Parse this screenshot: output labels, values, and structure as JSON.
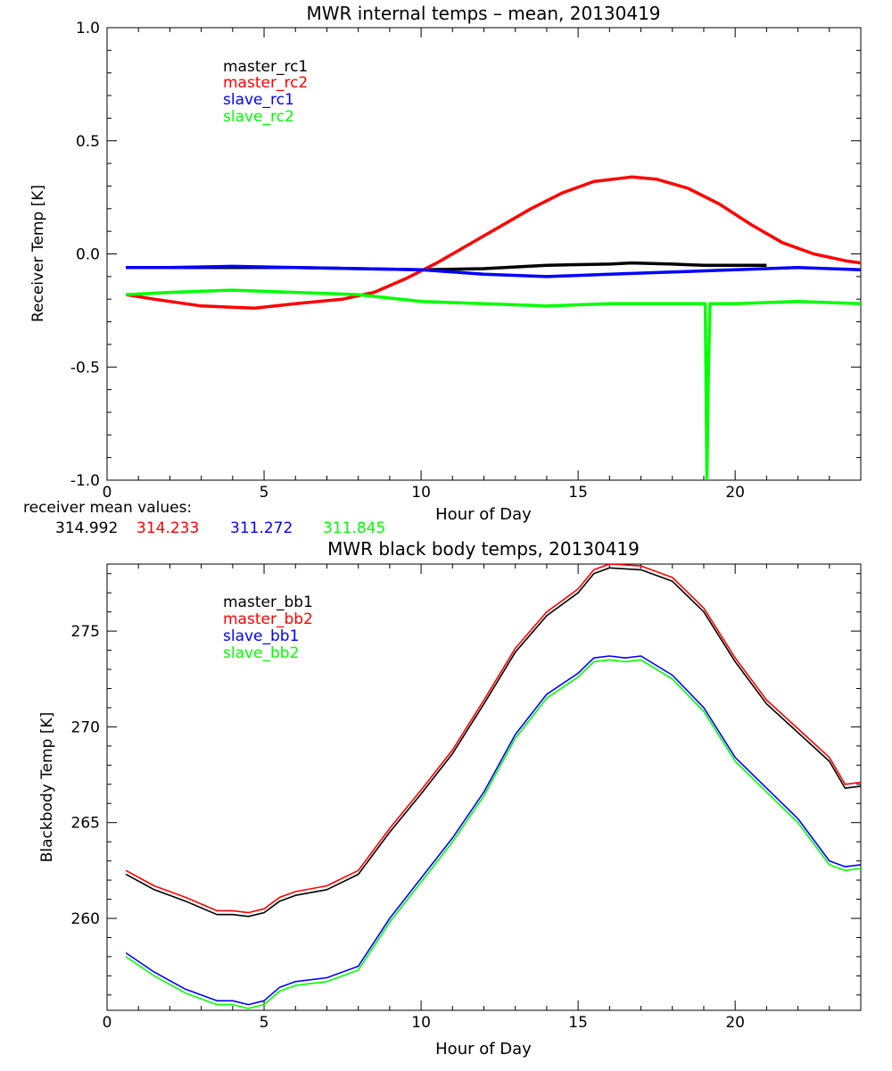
{
  "chart_data": [
    {
      "type": "line",
      "title": "MWR internal temps – mean, 20130419",
      "xlabel": "Hour of Day",
      "ylabel": "Receiver Temp [K]",
      "xlim": [
        0,
        24
      ],
      "ylim": [
        -1.0,
        1.0
      ],
      "xticks": [
        "0",
        "5",
        "10",
        "15",
        "20"
      ],
      "xtick_values": [
        0,
        5,
        10,
        15,
        20
      ],
      "yticks": [
        "-1.0",
        "-0.5",
        "0.0",
        "0.5",
        "1.0"
      ],
      "ytick_values": [
        -1.0,
        -0.5,
        0.0,
        0.5,
        1.0
      ],
      "grid": false,
      "legend_position": "top-left",
      "series": [
        {
          "name": "master_rc1",
          "color": "#000000",
          "x": [
            0.6,
            2,
            4,
            6,
            8,
            10,
            12,
            14,
            16,
            16.7,
            18,
            19,
            20,
            21
          ],
          "y": [
            -0.06,
            -0.06,
            -0.06,
            -0.06,
            -0.065,
            -0.07,
            -0.065,
            -0.05,
            -0.045,
            -0.04,
            -0.045,
            -0.05,
            -0.05,
            -0.05
          ]
        },
        {
          "name": "master_rc2",
          "color": "#ff0000",
          "x": [
            0.6,
            1.5,
            3,
            4.7,
            6,
            7.5,
            8.5,
            9.5,
            10.5,
            11.5,
            12.5,
            13.5,
            14.5,
            15.5,
            16.7,
            17.5,
            18.5,
            19.5,
            20.5,
            21.5,
            22.5,
            23.5,
            24
          ],
          "y": [
            -0.18,
            -0.2,
            -0.23,
            -0.24,
            -0.22,
            -0.2,
            -0.17,
            -0.11,
            -0.04,
            0.04,
            0.12,
            0.2,
            0.27,
            0.32,
            0.34,
            0.33,
            0.29,
            0.22,
            0.13,
            0.05,
            0.0,
            -0.03,
            -0.04
          ]
        },
        {
          "name": "slave_rc1",
          "color": "#0000ff",
          "x": [
            0.6,
            2,
            4,
            6,
            8,
            10,
            12,
            14,
            16,
            18,
            20,
            22,
            24
          ],
          "y": [
            -0.06,
            -0.06,
            -0.055,
            -0.06,
            -0.065,
            -0.07,
            -0.09,
            -0.1,
            -0.09,
            -0.08,
            -0.07,
            -0.06,
            -0.07
          ]
        },
        {
          "name": "slave_rc2",
          "color": "#00ff00",
          "x": [
            0.6,
            2,
            4,
            6,
            8,
            10,
            12,
            14,
            16,
            18,
            19.05,
            19.1,
            19.15,
            19.2,
            20,
            22,
            24
          ],
          "y": [
            -0.18,
            -0.17,
            -0.16,
            -0.17,
            -0.18,
            -0.21,
            -0.22,
            -0.23,
            -0.22,
            -0.22,
            -0.22,
            -1.0,
            -0.52,
            -0.22,
            -0.22,
            -0.21,
            -0.22
          ]
        }
      ],
      "annotations": {
        "label": "receiver mean values:",
        "values": [
          {
            "text": "314.992",
            "color": "#000000"
          },
          {
            "text": "314.233",
            "color": "#ff0000"
          },
          {
            "text": "311.272",
            "color": "#0000ff"
          },
          {
            "text": "311.845",
            "color": "#00ff00"
          }
        ]
      }
    },
    {
      "type": "line",
      "title": "MWR black body temps, 20130419",
      "xlabel": "Hour of Day",
      "ylabel": "Blackbody Temp [K]",
      "xlim": [
        0,
        24
      ],
      "ylim": [
        255.2,
        278.5
      ],
      "xticks": [
        "0",
        "5",
        "10",
        "15",
        "20"
      ],
      "xtick_values": [
        0,
        5,
        10,
        15,
        20
      ],
      "yticks": [
        "260",
        "265",
        "270",
        "275"
      ],
      "ytick_values": [
        260,
        265,
        270,
        275
      ],
      "grid": false,
      "legend_position": "top-left",
      "series": [
        {
          "name": "master_bb1",
          "color": "#000000",
          "x": [
            0.6,
            1.5,
            2.5,
            3.5,
            4,
            4.5,
            5,
            5.5,
            6,
            7,
            8,
            9,
            10,
            11,
            12,
            13,
            14,
            15,
            15.5,
            16,
            17,
            18,
            19,
            20,
            21,
            22,
            23,
            23.5,
            24
          ],
          "y": [
            262.3,
            261.5,
            260.9,
            260.2,
            260.2,
            260.1,
            260.3,
            260.9,
            261.2,
            261.5,
            262.3,
            264.5,
            266.5,
            268.6,
            271.2,
            273.9,
            275.8,
            277.0,
            278.0,
            278.3,
            278.2,
            277.6,
            276.0,
            273.4,
            271.2,
            269.7,
            268.2,
            266.8,
            266.9
          ]
        },
        {
          "name": "master_bb2",
          "color": "#ff0000",
          "x": [
            0.6,
            1.5,
            2.5,
            3.5,
            4,
            4.5,
            5,
            5.5,
            6,
            7,
            8,
            9,
            10,
            11,
            12,
            13,
            14,
            15,
            15.5,
            16,
            17,
            18,
            19,
            20,
            21,
            22,
            23,
            23.5,
            24
          ],
          "y": [
            262.5,
            261.7,
            261.1,
            260.4,
            260.4,
            260.3,
            260.5,
            261.1,
            261.4,
            261.7,
            262.5,
            264.7,
            266.7,
            268.8,
            271.4,
            274.1,
            276.0,
            277.2,
            278.2,
            278.5,
            278.4,
            277.8,
            276.2,
            273.6,
            271.4,
            269.9,
            268.4,
            267.0,
            267.1
          ]
        },
        {
          "name": "slave_bb1",
          "color": "#0000ff",
          "x": [
            0.6,
            1.5,
            2.5,
            3.5,
            4,
            4.5,
            5,
            5.5,
            6,
            7,
            8,
            9,
            10,
            11,
            12,
            13,
            14,
            15,
            15.5,
            16,
            16.5,
            17,
            18,
            19,
            20,
            21,
            22,
            23,
            23.5,
            24
          ],
          "y": [
            258.2,
            257.2,
            256.3,
            255.7,
            255.7,
            255.5,
            255.7,
            256.4,
            256.7,
            256.9,
            257.5,
            260.0,
            262.1,
            264.2,
            266.6,
            269.6,
            271.7,
            272.8,
            273.6,
            273.7,
            273.6,
            273.7,
            272.7,
            271.0,
            268.4,
            266.8,
            265.2,
            263.0,
            262.7,
            262.8
          ]
        },
        {
          "name": "slave_bb2",
          "color": "#00ff00",
          "x": [
            0.6,
            1.5,
            2.5,
            3.5,
            4,
            4.5,
            5,
            5.5,
            6,
            7,
            8,
            9,
            10,
            11,
            12,
            13,
            14,
            15,
            15.5,
            16,
            16.5,
            17,
            18,
            19,
            20,
            21,
            22,
            23,
            23.5,
            24
          ],
          "y": [
            258.0,
            257.0,
            256.1,
            255.5,
            255.5,
            255.3,
            255.5,
            256.2,
            256.5,
            256.7,
            257.3,
            259.8,
            261.9,
            264.0,
            266.4,
            269.4,
            271.5,
            272.6,
            273.4,
            273.5,
            273.4,
            273.5,
            272.5,
            270.8,
            268.2,
            266.6,
            265.0,
            262.8,
            262.5,
            262.6
          ]
        }
      ]
    }
  ]
}
